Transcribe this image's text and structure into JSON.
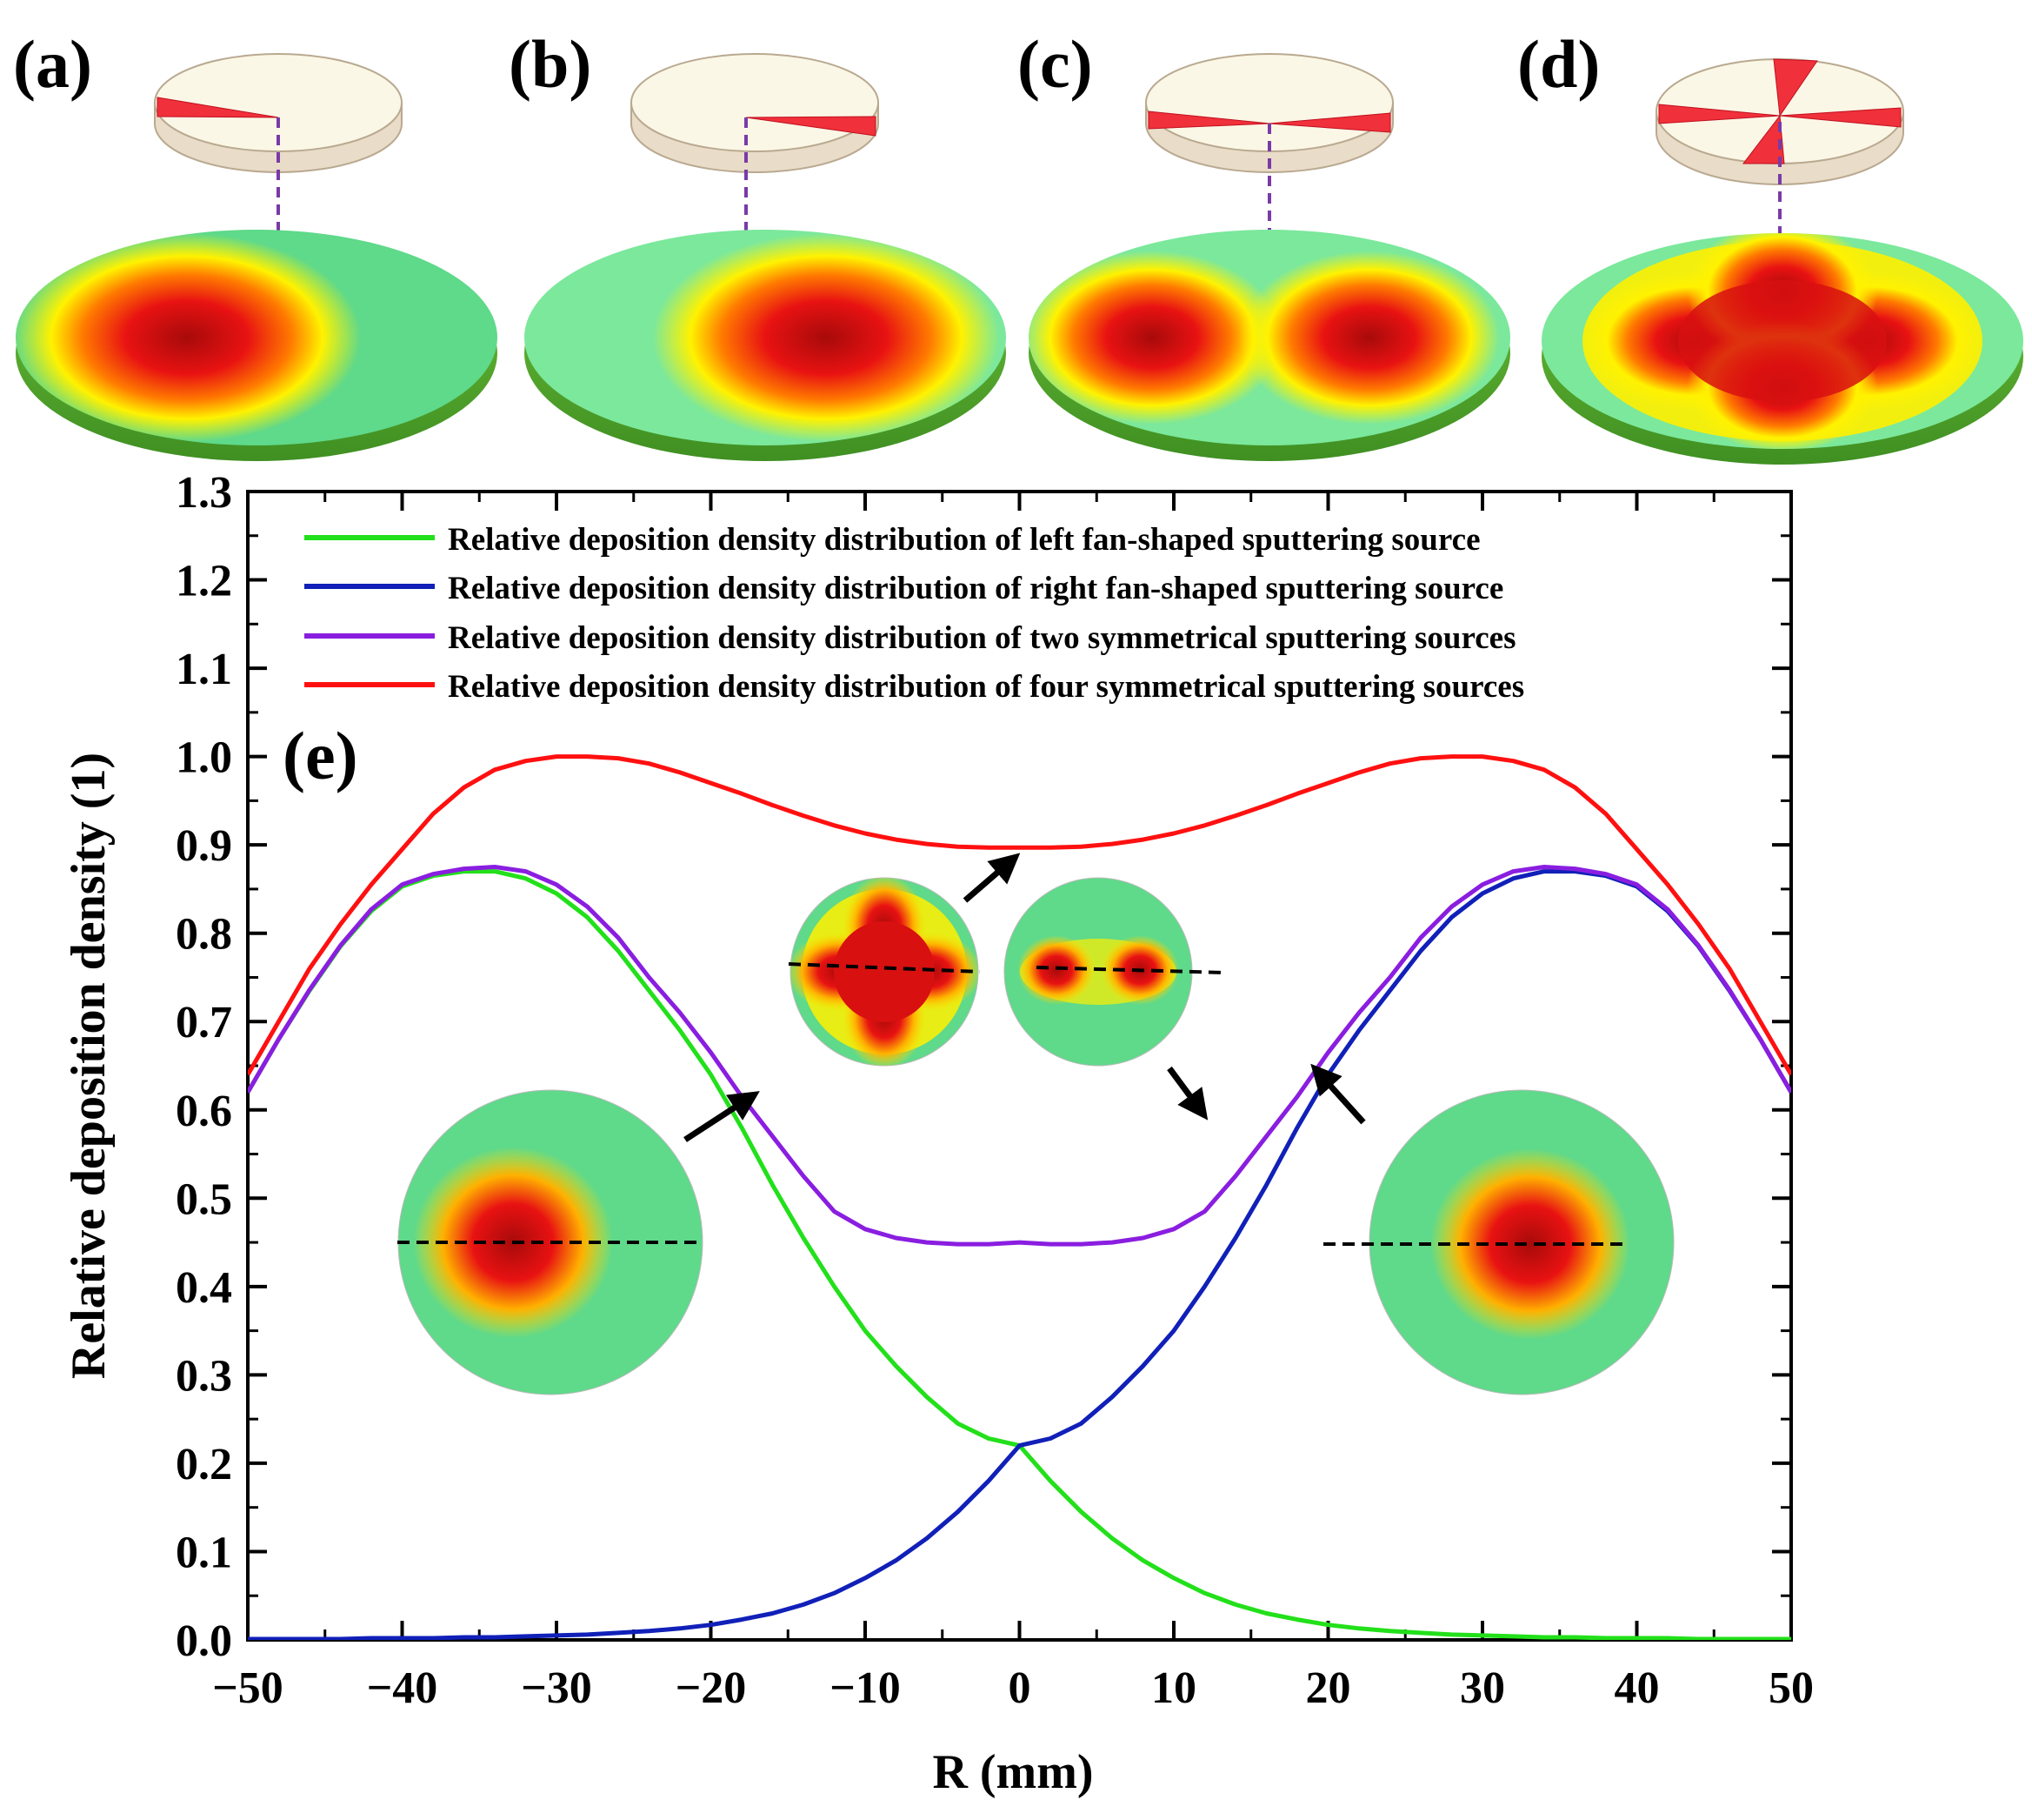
{
  "panels": {
    "a": "(a)",
    "b": "(b)",
    "c": "(c)",
    "d": "(d)",
    "e": "(e)"
  },
  "colors": {
    "left": "#22e01a",
    "right": "#1020b8",
    "two": "#8a1ee0",
    "four": "#ff1010",
    "target_green": "#5fd98a",
    "deposit_red": "#c40000",
    "target_yellow": "#fff000",
    "disc_cream": "#fbf7e6",
    "dash": "#7a3aa8"
  },
  "chart_data": {
    "type": "line",
    "title": "",
    "xlabel": "R (mm)",
    "ylabel": "Relative deposition density (1)",
    "xlim": [
      -50,
      50
    ],
    "ylim": [
      0,
      1.3
    ],
    "xticks": [
      -50,
      -40,
      -30,
      -20,
      -10,
      0,
      10,
      20,
      30,
      40,
      50
    ],
    "xtick_labels": [
      "−50",
      "−40",
      "−30",
      "−20",
      "−10",
      "0",
      "10",
      "20",
      "30",
      "40",
      "50"
    ],
    "yticks": [
      0.0,
      0.1,
      0.2,
      0.3,
      0.4,
      0.5,
      0.6,
      0.7,
      0.8,
      0.9,
      1.0,
      1.1,
      1.2,
      1.3
    ],
    "ytick_labels": [
      "0.0",
      "0.1",
      "0.2",
      "0.3",
      "0.4",
      "0.5",
      "0.6",
      "0.7",
      "0.8",
      "0.9",
      "1.0",
      "1.1",
      "1.2",
      "1.3"
    ],
    "legend_position": "top-left",
    "x": [
      -50,
      -48,
      -46,
      -44,
      -42,
      -40,
      -38,
      -36,
      -34,
      -32,
      -30,
      -28,
      -26,
      -24,
      -22,
      -20,
      -18,
      -16,
      -14,
      -12,
      -10,
      -8,
      -6,
      -4,
      -2,
      0,
      2,
      4,
      6,
      8,
      10,
      12,
      14,
      16,
      18,
      20,
      22,
      24,
      26,
      28,
      30,
      32,
      34,
      36,
      38,
      40,
      42,
      44,
      46,
      48,
      50
    ],
    "series": [
      {
        "name": "Relative deposition density distribution of left fan-shaped sputtering source",
        "key": "left",
        "values": [
          0.62,
          0.68,
          0.735,
          0.785,
          0.825,
          0.853,
          0.865,
          0.87,
          0.87,
          0.862,
          0.845,
          0.818,
          0.78,
          0.735,
          0.69,
          0.64,
          0.58,
          0.515,
          0.455,
          0.4,
          0.35,
          0.31,
          0.275,
          0.245,
          0.228,
          0.22,
          0.18,
          0.145,
          0.115,
          0.09,
          0.07,
          0.053,
          0.04,
          0.03,
          0.023,
          0.017,
          0.013,
          0.01,
          0.008,
          0.006,
          0.005,
          0.004,
          0.003,
          0.003,
          0.002,
          0.002,
          0.002,
          0.001,
          0.001,
          0.001,
          0.001
        ]
      },
      {
        "name": "Relative deposition density distribution of right fan-shaped sputtering source",
        "key": "right",
        "values": [
          0.001,
          0.001,
          0.001,
          0.001,
          0.002,
          0.002,
          0.002,
          0.003,
          0.003,
          0.004,
          0.005,
          0.006,
          0.008,
          0.01,
          0.013,
          0.017,
          0.023,
          0.03,
          0.04,
          0.053,
          0.07,
          0.09,
          0.115,
          0.145,
          0.18,
          0.22,
          0.228,
          0.245,
          0.275,
          0.31,
          0.35,
          0.4,
          0.455,
          0.515,
          0.58,
          0.64,
          0.69,
          0.735,
          0.78,
          0.818,
          0.845,
          0.862,
          0.87,
          0.87,
          0.865,
          0.853,
          0.825,
          0.785,
          0.735,
          0.68,
          0.62
        ]
      },
      {
        "name": "Relative deposition density distribution of two symmetrical sputtering sources",
        "key": "two",
        "values": [
          0.62,
          0.68,
          0.736,
          0.786,
          0.827,
          0.855,
          0.867,
          0.873,
          0.875,
          0.87,
          0.855,
          0.83,
          0.795,
          0.75,
          0.71,
          0.665,
          0.615,
          0.57,
          0.525,
          0.485,
          0.465,
          0.455,
          0.45,
          0.448,
          0.448,
          0.45,
          0.448,
          0.448,
          0.45,
          0.455,
          0.465,
          0.485,
          0.525,
          0.57,
          0.615,
          0.665,
          0.71,
          0.75,
          0.795,
          0.83,
          0.855,
          0.87,
          0.875,
          0.873,
          0.867,
          0.855,
          0.827,
          0.786,
          0.736,
          0.68,
          0.62
        ]
      },
      {
        "name": "Relative deposition density distribution of four symmetrical sputtering sources",
        "key": "four",
        "values": [
          0.64,
          0.7,
          0.76,
          0.81,
          0.855,
          0.895,
          0.935,
          0.965,
          0.985,
          0.995,
          1.0,
          1.0,
          0.998,
          0.992,
          0.982,
          0.97,
          0.958,
          0.945,
          0.933,
          0.922,
          0.913,
          0.906,
          0.901,
          0.898,
          0.897,
          0.897,
          0.897,
          0.898,
          0.901,
          0.906,
          0.913,
          0.922,
          0.933,
          0.945,
          0.958,
          0.97,
          0.982,
          0.992,
          0.998,
          1.0,
          1.0,
          0.995,
          0.985,
          0.965,
          0.935,
          0.895,
          0.855,
          0.81,
          0.76,
          0.7,
          0.64
        ]
      }
    ]
  }
}
